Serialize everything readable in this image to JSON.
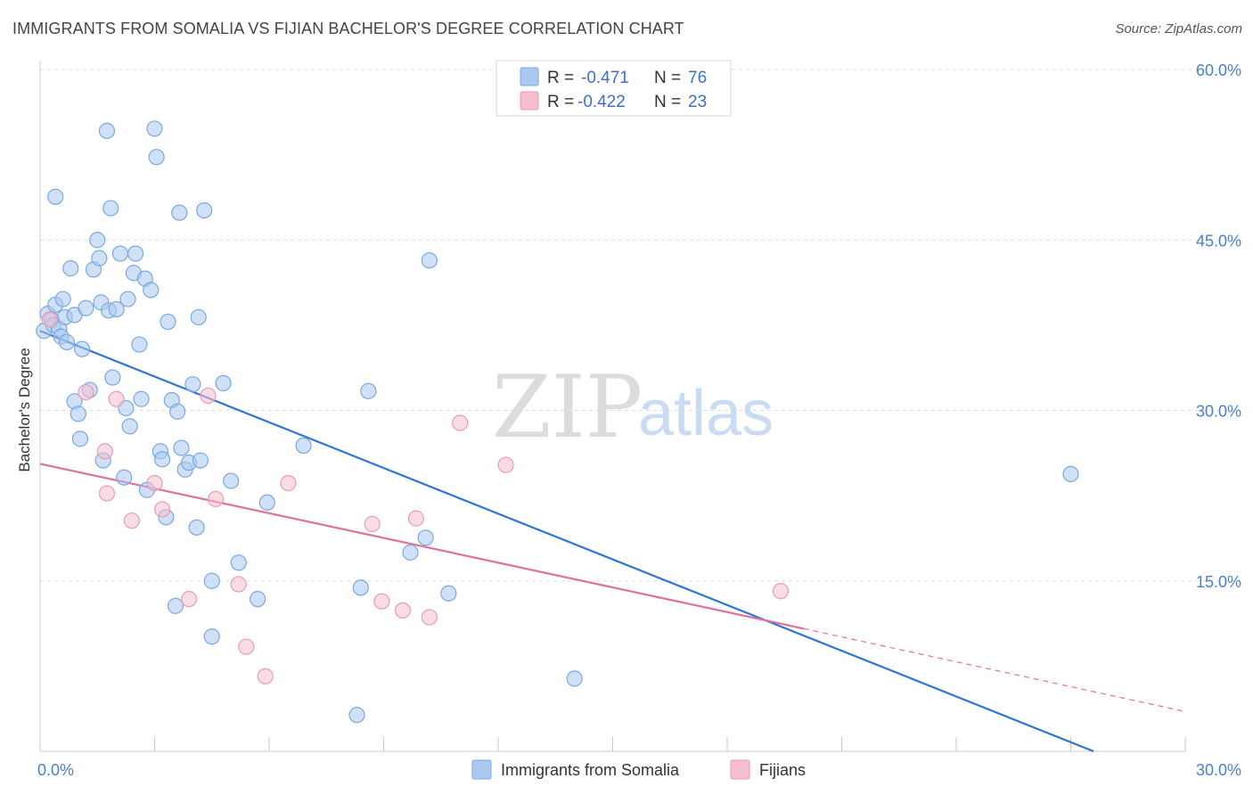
{
  "header": {
    "title": "IMMIGRANTS FROM SOMALIA VS FIJIAN BACHELOR'S DEGREE CORRELATION CHART",
    "source": "Source: ZipAtlas.com"
  },
  "watermark": {
    "zip": "ZIP",
    "atlas": "atlas"
  },
  "legend_top": {
    "rows": [
      {
        "r_label": "R =",
        "r_value": "-0.471",
        "n_label": "N =",
        "n_value": "76"
      },
      {
        "r_label": "R =",
        "r_value": "-0.422",
        "n_label": "N =",
        "n_value": "23"
      }
    ]
  },
  "legend_bottom": {
    "items": [
      "Immigrants from Somalia",
      "Fijians"
    ]
  },
  "colors": {
    "somalia_fill": "#aac8f0",
    "somalia_stroke": "#7aa8e0",
    "somalia_line": "#2f74d6",
    "fiji_fill": "#f6bfd0",
    "fiji_stroke": "#ec9ab5",
    "fiji_line": "#e0709a",
    "grid": "#dddddd",
    "tick_label": "#4a7fd4"
  },
  "chart_data": {
    "type": "scatter",
    "title": "IMMIGRANTS FROM SOMALIA VS FIJIAN BACHELOR'S DEGREE CORRELATION CHART",
    "xlabel": "",
    "ylabel": "Bachelor's Degree",
    "xlim": [
      0,
      30
    ],
    "ylim": [
      0,
      62
    ],
    "x_tick_labels": [
      "0.0%",
      "30.0%"
    ],
    "y_ticks": [
      15,
      30,
      45,
      60
    ],
    "y_tick_labels": [
      "15.0%",
      "30.0%",
      "45.0%",
      "60.0%"
    ],
    "grid": true,
    "series": [
      {
        "name": "Immigrants from Somalia",
        "r": -0.471,
        "n": 76,
        "trend": {
          "x": [
            0,
            27.6
          ],
          "y": [
            37.0,
            0.0
          ]
        },
        "points": [
          [
            0.1,
            37.0
          ],
          [
            0.2,
            38.5
          ],
          [
            0.3,
            38.0
          ],
          [
            0.4,
            39.3
          ],
          [
            0.35,
            37.5
          ],
          [
            0.5,
            37.2
          ],
          [
            0.4,
            48.8
          ],
          [
            0.55,
            36.5
          ],
          [
            0.6,
            39.8
          ],
          [
            0.65,
            38.2
          ],
          [
            0.7,
            36.0
          ],
          [
            0.8,
            42.5
          ],
          [
            0.9,
            38.4
          ],
          [
            0.9,
            30.8
          ],
          [
            1.0,
            29.7
          ],
          [
            1.05,
            27.5
          ],
          [
            1.1,
            35.4
          ],
          [
            1.2,
            39.0
          ],
          [
            1.3,
            31.8
          ],
          [
            1.4,
            42.4
          ],
          [
            1.5,
            45.0
          ],
          [
            1.55,
            43.4
          ],
          [
            1.6,
            39.5
          ],
          [
            1.65,
            25.6
          ],
          [
            1.75,
            54.6
          ],
          [
            1.8,
            38.8
          ],
          [
            1.85,
            47.8
          ],
          [
            1.9,
            32.9
          ],
          [
            2.0,
            38.9
          ],
          [
            2.1,
            43.8
          ],
          [
            2.2,
            24.1
          ],
          [
            2.25,
            30.2
          ],
          [
            2.3,
            39.8
          ],
          [
            2.35,
            28.6
          ],
          [
            2.45,
            42.1
          ],
          [
            2.5,
            43.8
          ],
          [
            2.6,
            35.8
          ],
          [
            2.65,
            31.0
          ],
          [
            2.75,
            41.6
          ],
          [
            2.8,
            23.0
          ],
          [
            2.9,
            40.6
          ],
          [
            3.0,
            54.8
          ],
          [
            3.05,
            52.3
          ],
          [
            3.15,
            26.4
          ],
          [
            3.2,
            25.7
          ],
          [
            3.3,
            20.6
          ],
          [
            3.35,
            37.8
          ],
          [
            3.45,
            30.9
          ],
          [
            3.55,
            12.8
          ],
          [
            3.6,
            29.9
          ],
          [
            3.65,
            47.4
          ],
          [
            3.7,
            26.7
          ],
          [
            3.8,
            24.8
          ],
          [
            3.9,
            25.4
          ],
          [
            4.0,
            32.3
          ],
          [
            4.1,
            19.7
          ],
          [
            4.15,
            38.2
          ],
          [
            4.2,
            25.6
          ],
          [
            4.3,
            47.6
          ],
          [
            4.5,
            15.0
          ],
          [
            4.5,
            10.1
          ],
          [
            4.8,
            32.4
          ],
          [
            5.0,
            23.8
          ],
          [
            5.2,
            16.6
          ],
          [
            5.7,
            13.4
          ],
          [
            5.95,
            21.9
          ],
          [
            6.9,
            26.9
          ],
          [
            8.3,
            3.2
          ],
          [
            8.4,
            14.4
          ],
          [
            8.6,
            31.7
          ],
          [
            9.7,
            17.5
          ],
          [
            10.1,
            18.8
          ],
          [
            10.2,
            43.2
          ],
          [
            10.7,
            13.9
          ],
          [
            14.0,
            6.4
          ],
          [
            27.0,
            24.4
          ]
        ]
      },
      {
        "name": "Fijians",
        "r": -0.422,
        "n": 23,
        "trend": {
          "x": [
            0,
            20.0
          ],
          "y": [
            25.3,
            10.8
          ]
        },
        "trend_dashed": {
          "x": [
            20.0,
            30.0
          ],
          "y": [
            10.8,
            3.5
          ]
        },
        "points": [
          [
            0.25,
            38.0
          ],
          [
            1.2,
            31.6
          ],
          [
            1.7,
            26.4
          ],
          [
            1.75,
            22.7
          ],
          [
            2.0,
            31.0
          ],
          [
            2.4,
            20.3
          ],
          [
            3.0,
            23.6
          ],
          [
            3.2,
            21.3
          ],
          [
            3.9,
            13.4
          ],
          [
            4.4,
            31.3
          ],
          [
            4.6,
            22.2
          ],
          [
            5.2,
            14.7
          ],
          [
            5.4,
            9.2
          ],
          [
            5.9,
            6.6
          ],
          [
            6.5,
            23.6
          ],
          [
            8.7,
            20.0
          ],
          [
            8.95,
            13.2
          ],
          [
            9.5,
            12.4
          ],
          [
            9.85,
            20.5
          ],
          [
            10.2,
            11.8
          ],
          [
            11.0,
            28.9
          ],
          [
            12.2,
            25.2
          ],
          [
            19.4,
            14.1
          ]
        ]
      }
    ]
  }
}
